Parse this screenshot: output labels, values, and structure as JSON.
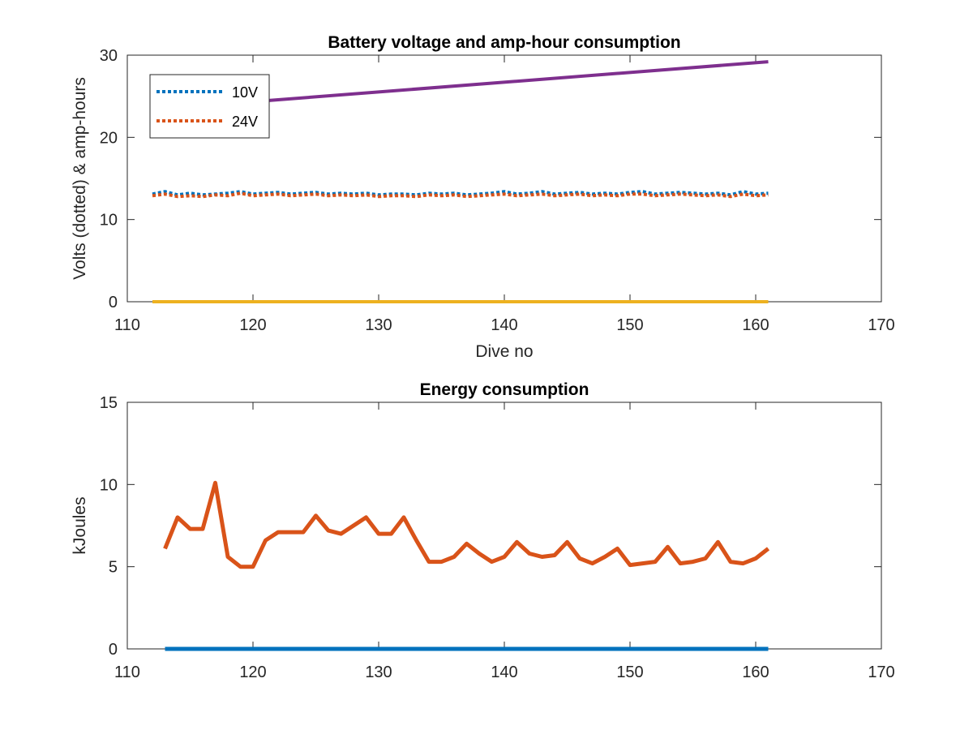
{
  "chart_data": [
    {
      "type": "line",
      "title": "Battery voltage and amp-hour consumption",
      "xlabel": "Dive no",
      "ylabel": "Volts (dotted) & amp-hours",
      "xlim": [
        110,
        170
      ],
      "ylim": [
        0,
        30
      ],
      "xticks": [
        110,
        120,
        130,
        140,
        150,
        160,
        170
      ],
      "yticks": [
        0,
        10,
        20,
        30
      ],
      "grid": false,
      "legend_position": "top-left",
      "series": [
        {
          "name": "10V",
          "color": "#0072BD",
          "style": "dotted",
          "x": [
            112,
            113,
            114,
            115,
            116,
            117,
            118,
            119,
            120,
            121,
            122,
            123,
            124,
            125,
            126,
            127,
            128,
            129,
            130,
            131,
            132,
            133,
            134,
            135,
            136,
            137,
            138,
            139,
            140,
            141,
            142,
            143,
            144,
            145,
            146,
            147,
            148,
            149,
            150,
            151,
            152,
            153,
            154,
            155,
            156,
            157,
            158,
            159,
            160,
            161
          ],
          "y": [
            13.1,
            13.4,
            13.0,
            13.2,
            13.0,
            13.1,
            13.2,
            13.4,
            13.1,
            13.2,
            13.3,
            13.1,
            13.2,
            13.3,
            13.1,
            13.2,
            13.1,
            13.2,
            13.0,
            13.1,
            13.1,
            13.0,
            13.2,
            13.1,
            13.2,
            13.0,
            13.1,
            13.2,
            13.4,
            13.1,
            13.2,
            13.4,
            13.1,
            13.2,
            13.3,
            13.1,
            13.2,
            13.1,
            13.3,
            13.4,
            13.1,
            13.2,
            13.3,
            13.2,
            13.1,
            13.2,
            13.0,
            13.4,
            13.1,
            13.2
          ]
        },
        {
          "name": "24V",
          "color": "#D95319",
          "style": "dotted",
          "x": [
            112,
            113,
            114,
            115,
            116,
            117,
            118,
            119,
            120,
            121,
            122,
            123,
            124,
            125,
            126,
            127,
            128,
            129,
            130,
            131,
            132,
            133,
            134,
            135,
            136,
            137,
            138,
            139,
            140,
            141,
            142,
            143,
            144,
            145,
            146,
            147,
            148,
            149,
            150,
            151,
            152,
            153,
            154,
            155,
            156,
            157,
            158,
            159,
            160,
            161
          ],
          "y": [
            12.9,
            13.1,
            12.8,
            12.9,
            12.8,
            13.0,
            12.9,
            13.2,
            12.9,
            13.0,
            13.1,
            12.9,
            13.0,
            13.1,
            12.9,
            13.0,
            12.9,
            13.0,
            12.8,
            12.9,
            12.9,
            12.8,
            13.0,
            12.9,
            13.0,
            12.8,
            12.9,
            13.0,
            13.1,
            12.9,
            13.0,
            13.1,
            12.9,
            13.0,
            13.1,
            12.9,
            13.0,
            12.9,
            13.1,
            13.1,
            12.9,
            13.0,
            13.1,
            13.0,
            12.9,
            13.0,
            12.8,
            13.1,
            12.9,
            13.0
          ]
        },
        {
          "color": "#EDB120",
          "style": "solid",
          "x": [
            112,
            161
          ],
          "y": [
            0,
            0
          ]
        },
        {
          "color": "#7E2F8E",
          "style": "solid",
          "x": [
            118,
            161
          ],
          "y": [
            24.1,
            29.2
          ]
        }
      ]
    },
    {
      "type": "line",
      "title": "Energy consumption",
      "xlabel": "",
      "ylabel": "kJoules",
      "xlim": [
        110,
        170
      ],
      "ylim": [
        0,
        15
      ],
      "xticks": [
        110,
        120,
        130,
        140,
        150,
        160,
        170
      ],
      "yticks": [
        0,
        5,
        10,
        15
      ],
      "grid": false,
      "series": [
        {
          "color": "#0072BD",
          "style": "solid",
          "x": [
            113,
            161
          ],
          "y": [
            0,
            0
          ]
        },
        {
          "color": "#D95319",
          "style": "solid",
          "x": [
            113,
            114,
            115,
            116,
            117,
            118,
            119,
            120,
            121,
            122,
            123,
            124,
            125,
            126,
            127,
            128,
            129,
            130,
            131,
            132,
            133,
            134,
            135,
            136,
            137,
            138,
            139,
            140,
            141,
            142,
            143,
            144,
            145,
            146,
            147,
            148,
            149,
            150,
            151,
            152,
            153,
            154,
            155,
            156,
            157,
            158,
            159,
            160,
            161
          ],
          "y": [
            6.1,
            8.0,
            7.3,
            7.3,
            10.1,
            5.6,
            5.0,
            5.0,
            6.6,
            7.1,
            7.1,
            7.1,
            8.1,
            7.2,
            7.0,
            7.5,
            8.0,
            7.0,
            7.0,
            8.0,
            6.6,
            5.3,
            5.3,
            5.6,
            6.4,
            5.8,
            5.3,
            5.6,
            6.5,
            5.8,
            5.6,
            5.7,
            6.5,
            5.5,
            5.2,
            5.6,
            6.1,
            5.1,
            5.2,
            5.3,
            6.2,
            5.2,
            5.3,
            5.5,
            6.5,
            5.3,
            5.2,
            5.5,
            6.1
          ]
        }
      ]
    }
  ]
}
